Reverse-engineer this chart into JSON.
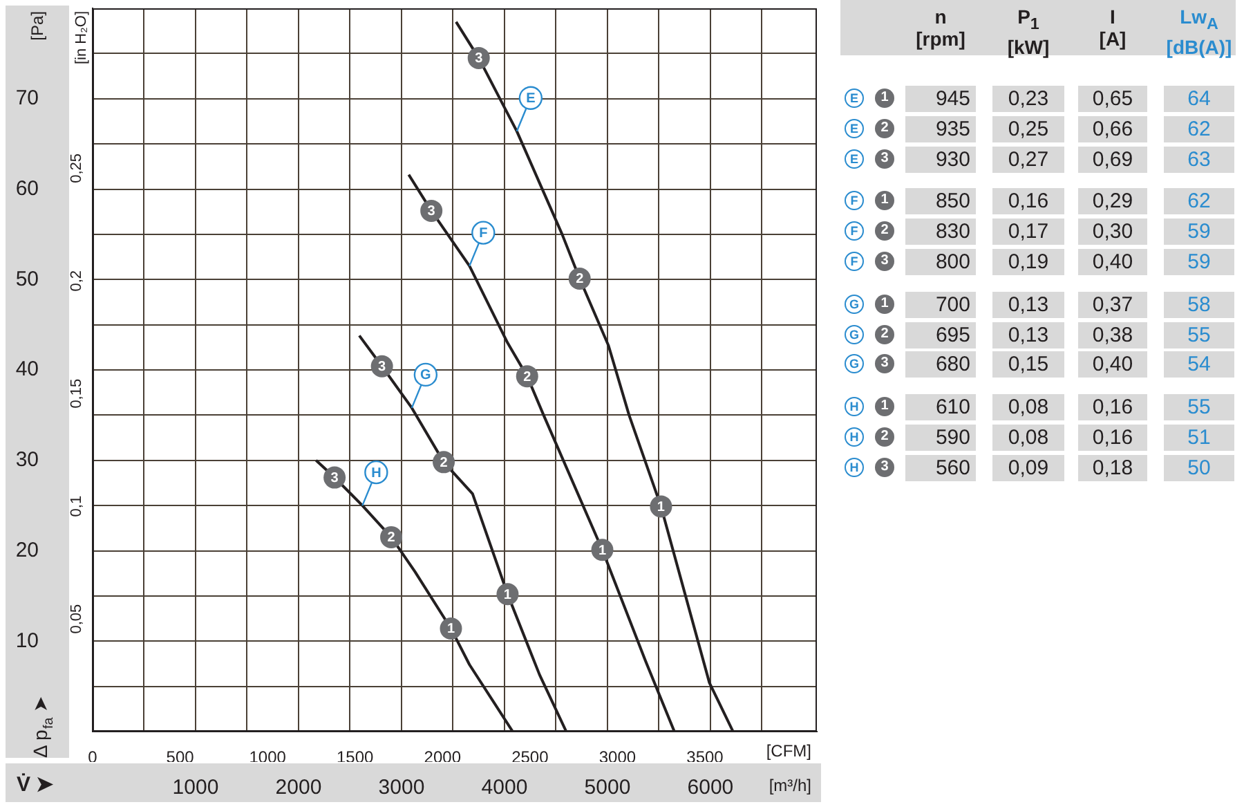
{
  "chart_data": [
    {
      "type": "line",
      "xlabel": "[m³/h]",
      "x2label": "[CFM]",
      "ylabel": "[Pa]",
      "y2label": "[in H₂O]",
      "xlim": [
        0,
        7034
      ],
      "xticks": [
        {
          "value": 500,
          "label": null
        },
        1000,
        {
          "value": 1500,
          "label": null
        },
        2000,
        {
          "value": 2500,
          "label": null
        },
        3000,
        {
          "value": 3500,
          "label": null
        },
        4000,
        {
          "value": 4500,
          "label": null
        },
        5000,
        {
          "value": 5500,
          "label": null
        },
        6000,
        {
          "value": 6500,
          "label": null
        }
      ],
      "x2lim": [
        0,
        4140
      ],
      "x2ticks": [
        0,
        500,
        1000,
        1500,
        2000,
        2500,
        3000,
        3500
      ],
      "ylim": [
        0,
        80
      ],
      "yticks": [
        {
          "value": 5,
          "label": null
        },
        10,
        {
          "value": 15,
          "label": null
        },
        20,
        {
          "value": 25,
          "label": null
        },
        30,
        {
          "value": 35,
          "label": null
        },
        40,
        {
          "value": 45,
          "label": null
        },
        50,
        {
          "value": 55,
          "label": null
        },
        60,
        {
          "value": 65,
          "label": null
        },
        70,
        {
          "value": 75,
          "label": null
        }
      ],
      "y2lim": [
        0,
        0.321
      ],
      "y2ticks": [
        {
          "value": 0.05,
          "label": "0,05"
        },
        {
          "value": 0.1,
          "label": "0,1"
        },
        {
          "value": 0.15,
          "label": "0,15"
        },
        {
          "value": 0.2,
          "label": "0,2"
        },
        {
          "value": 0.25,
          "label": "0,25"
        }
      ],
      "grid": true,
      "legend": false,
      "marker": "none",
      "series": [
        {
          "name": "E",
          "color": "#231f20",
          "x": [
            3530,
            3750,
            4120,
            4340,
            4560,
            4730,
            5010,
            5210,
            5520,
            5990,
            6220
          ],
          "values": [
            78.5,
            74.5,
            66.4,
            60.7,
            55,
            50.1,
            42.7,
            35,
            24.9,
            5.4,
            0
          ]
        },
        {
          "name": "F",
          "color": "#231f20",
          "x": [
            3070,
            3290,
            3660,
            4030,
            4220,
            4380,
            4950,
            5370,
            5650
          ],
          "values": [
            61.6,
            57.6,
            51.5,
            43,
            39.3,
            35,
            20.1,
            7.8,
            0
          ]
        },
        {
          "name": "G",
          "color": "#231f20",
          "x": [
            2590,
            2810,
            3100,
            3410,
            3690,
            4030,
            4340,
            4600
          ],
          "values": [
            43.8,
            40.4,
            35.8,
            29.8,
            26.3,
            15.2,
            6.3,
            0
          ]
        },
        {
          "name": "H",
          "color": "#231f20",
          "x": [
            2170,
            2350,
            2620,
            2900,
            3130,
            3480,
            3660,
            4080
          ],
          "values": [
            30,
            28.1,
            25,
            21.5,
            17.7,
            11.4,
            7.4,
            0
          ]
        }
      ],
      "annotations": [
        "Δ p$_{fa}$ ➤",
        "V̇ ➤",
        {
          "text": "3",
          "x": 3750,
          "y": 74.5
        },
        {
          "text": "2",
          "x": 4730,
          "y": 50.1
        },
        {
          "text": "1",
          "x": 5520,
          "y": 24.9
        },
        {
          "text": "3",
          "x": 3290,
          "y": 57.6
        },
        {
          "text": "2",
          "x": 4220,
          "y": 39.3
        },
        {
          "text": "1",
          "x": 4950,
          "y": 20.1
        },
        {
          "text": "3",
          "x": 2810,
          "y": 40.4
        },
        {
          "text": "2",
          "x": 3410,
          "y": 29.8
        },
        {
          "text": "1",
          "x": 4030,
          "y": 15.2
        },
        {
          "text": "3",
          "x": 2350,
          "y": 28.1
        },
        {
          "text": "2",
          "x": 2900,
          "y": 21.5
        },
        {
          "text": "1",
          "x": 3480,
          "y": 11.4
        }
      ]
    },
    {
      "type": "other",
      "categories": [
        "n\n[rpm]",
        "P$_{1}$\n[kW]",
        "I\n[A]",
        "Lw$_{A}$\n[dB(A)]"
      ],
      "colors": [
        "#231f20",
        "#231f20",
        "#231f20",
        "#2a8ccf"
      ],
      "y_categories": [
        "E",
        "E",
        "E",
        "F",
        "F",
        "F",
        "G",
        "G",
        "G",
        "H",
        "H",
        "H"
      ],
      "y2_categories": [
        "1",
        "2",
        "3",
        "1",
        "2",
        "3",
        "1",
        "2",
        "3",
        "1",
        "2",
        "3"
      ],
      "cell_labels": [
        [
          "945",
          "0,23",
          "0,65",
          "64"
        ],
        [
          "935",
          "0,25",
          "0,66",
          "62"
        ],
        [
          "930",
          "0,27",
          "0,69",
          "63"
        ],
        [
          "850",
          "0,16",
          "0,29",
          "62"
        ],
        [
          "830",
          "0,17",
          "0,30",
          "59"
        ],
        [
          "800",
          "0,19",
          "0,40",
          "59"
        ],
        [
          "700",
          "0,13",
          "0,37",
          "58"
        ],
        [
          "695",
          "0,13",
          "0,38",
          "55"
        ],
        [
          "680",
          "0,15",
          "0,40",
          "54"
        ],
        [
          "610",
          "0,08",
          "0,16",
          "55"
        ],
        [
          "590",
          "0,08",
          "0,16",
          "51"
        ],
        [
          "560",
          "0,09",
          "0,18",
          "50"
        ]
      ]
    }
  ]
}
